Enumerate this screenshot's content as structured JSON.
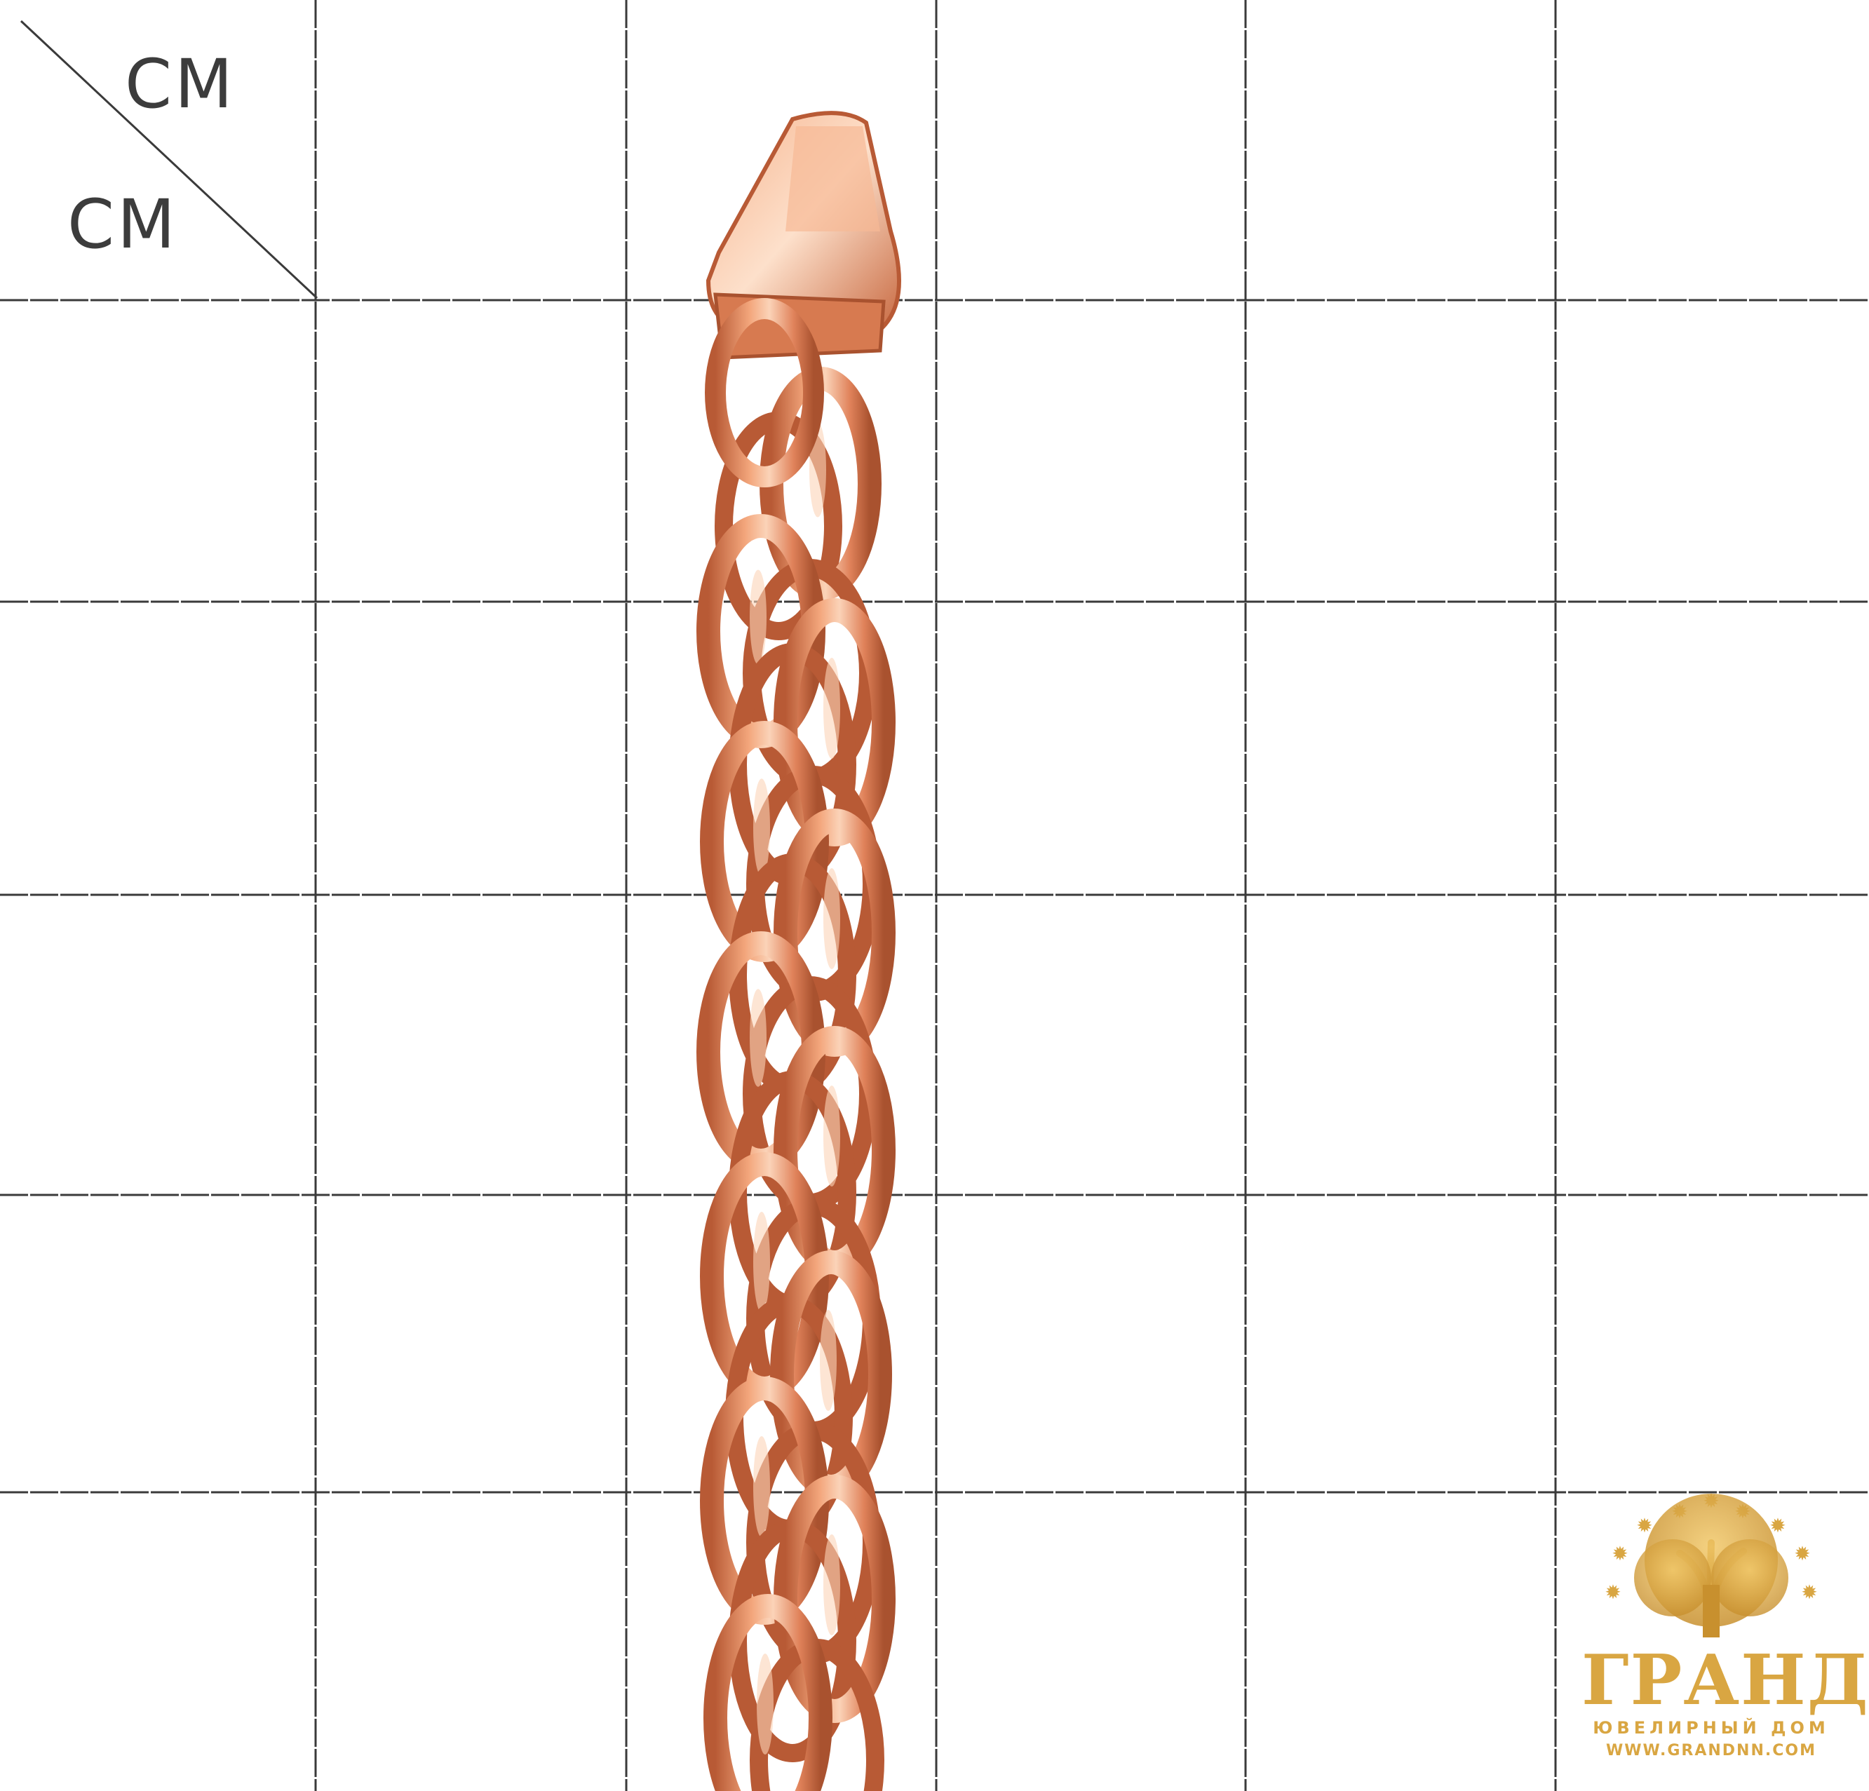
{
  "units": {
    "x": "CM",
    "y": "CM"
  },
  "grid": {
    "columns": 6,
    "rows": 6,
    "line_color": "#3a3a3a"
  },
  "product": {
    "object": "rose gold chain with clasp",
    "metal_color": "#e8906a",
    "highlight_color": "#fbd3b8",
    "shadow_color": "#b85a35"
  },
  "brand": {
    "name": "ГРАНД",
    "subtitle": "ЮВЕЛИРНЫЙ ДОМ",
    "url": "WWW.GRANDNN.COM",
    "color": "#d9a642",
    "logo_icon": "tree-icon"
  }
}
